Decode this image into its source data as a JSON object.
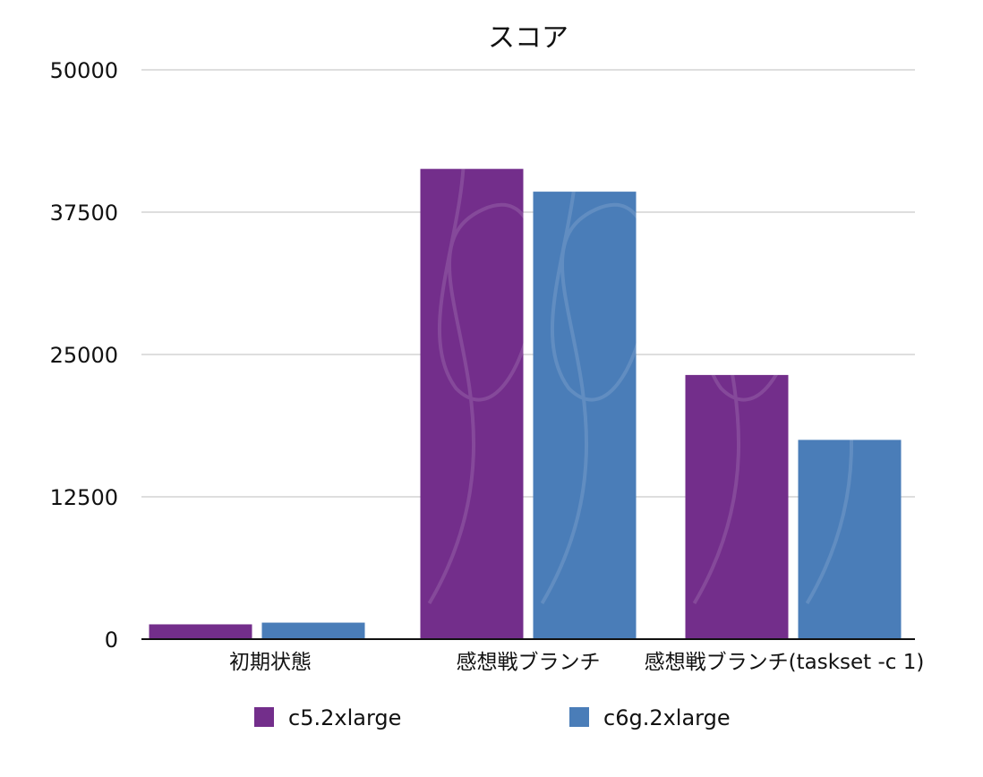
{
  "chart_data": {
    "type": "bar",
    "title": "スコア",
    "categories": [
      "初期状態",
      "感想戦ブランチ",
      "感想戦ブランチ(taskset -c 1)"
    ],
    "series": [
      {
        "name": "c5.2xlarge",
        "color": "#732e8b",
        "values": [
          1300,
          41300,
          23200
        ]
      },
      {
        "name": "c6g.2xlarge",
        "color": "#4a7db8",
        "values": [
          1450,
          39300,
          17500
        ]
      }
    ],
    "ylim": [
      0,
      50000
    ],
    "yticks": [
      0,
      12500,
      25000,
      37500,
      50000
    ],
    "xlabel": "",
    "ylabel": "",
    "grid": true,
    "legend_position": "bottom"
  }
}
